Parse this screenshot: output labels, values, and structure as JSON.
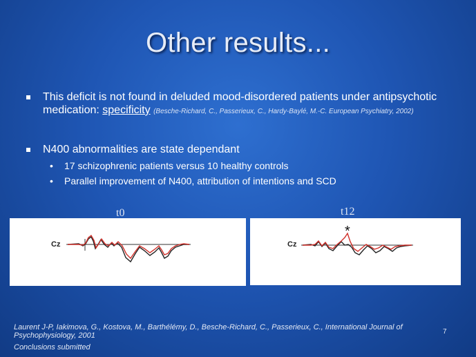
{
  "title": "Other results...",
  "bullets": {
    "b1_pre": "This deficit is not found in deluded mood-disordered patients under antipsychotic medication: ",
    "b1_link": "specificity",
    "b1_cite": "(Besche-Richard, C., Passerieux, C., Hardy-Baylé, M.-C. European Psychiatry, 2002)",
    "b2": "N400 abnormalities are state dependant",
    "sub1": "17 schizophrenic patients versus 10 healthy controls",
    "sub2": "Parallel improvement of N400, attribution of intentions and SCD"
  },
  "plots": {
    "left_label": "t0",
    "right_label": "t12",
    "electrode": "Cz",
    "significance": "*"
  },
  "footer": {
    "reference": "Laurent J-P, Iakimova, G., Kostova, M., Barthélémy, D., Besche-Richard, C., Passerieux, C., International Journal of Psychophysiology, 2001",
    "note": "Conclusions submitted",
    "page_number": "7"
  },
  "colors": {
    "background": "#1f56b4",
    "trace_patients": "#d0302a",
    "trace_controls": "#222222"
  }
}
